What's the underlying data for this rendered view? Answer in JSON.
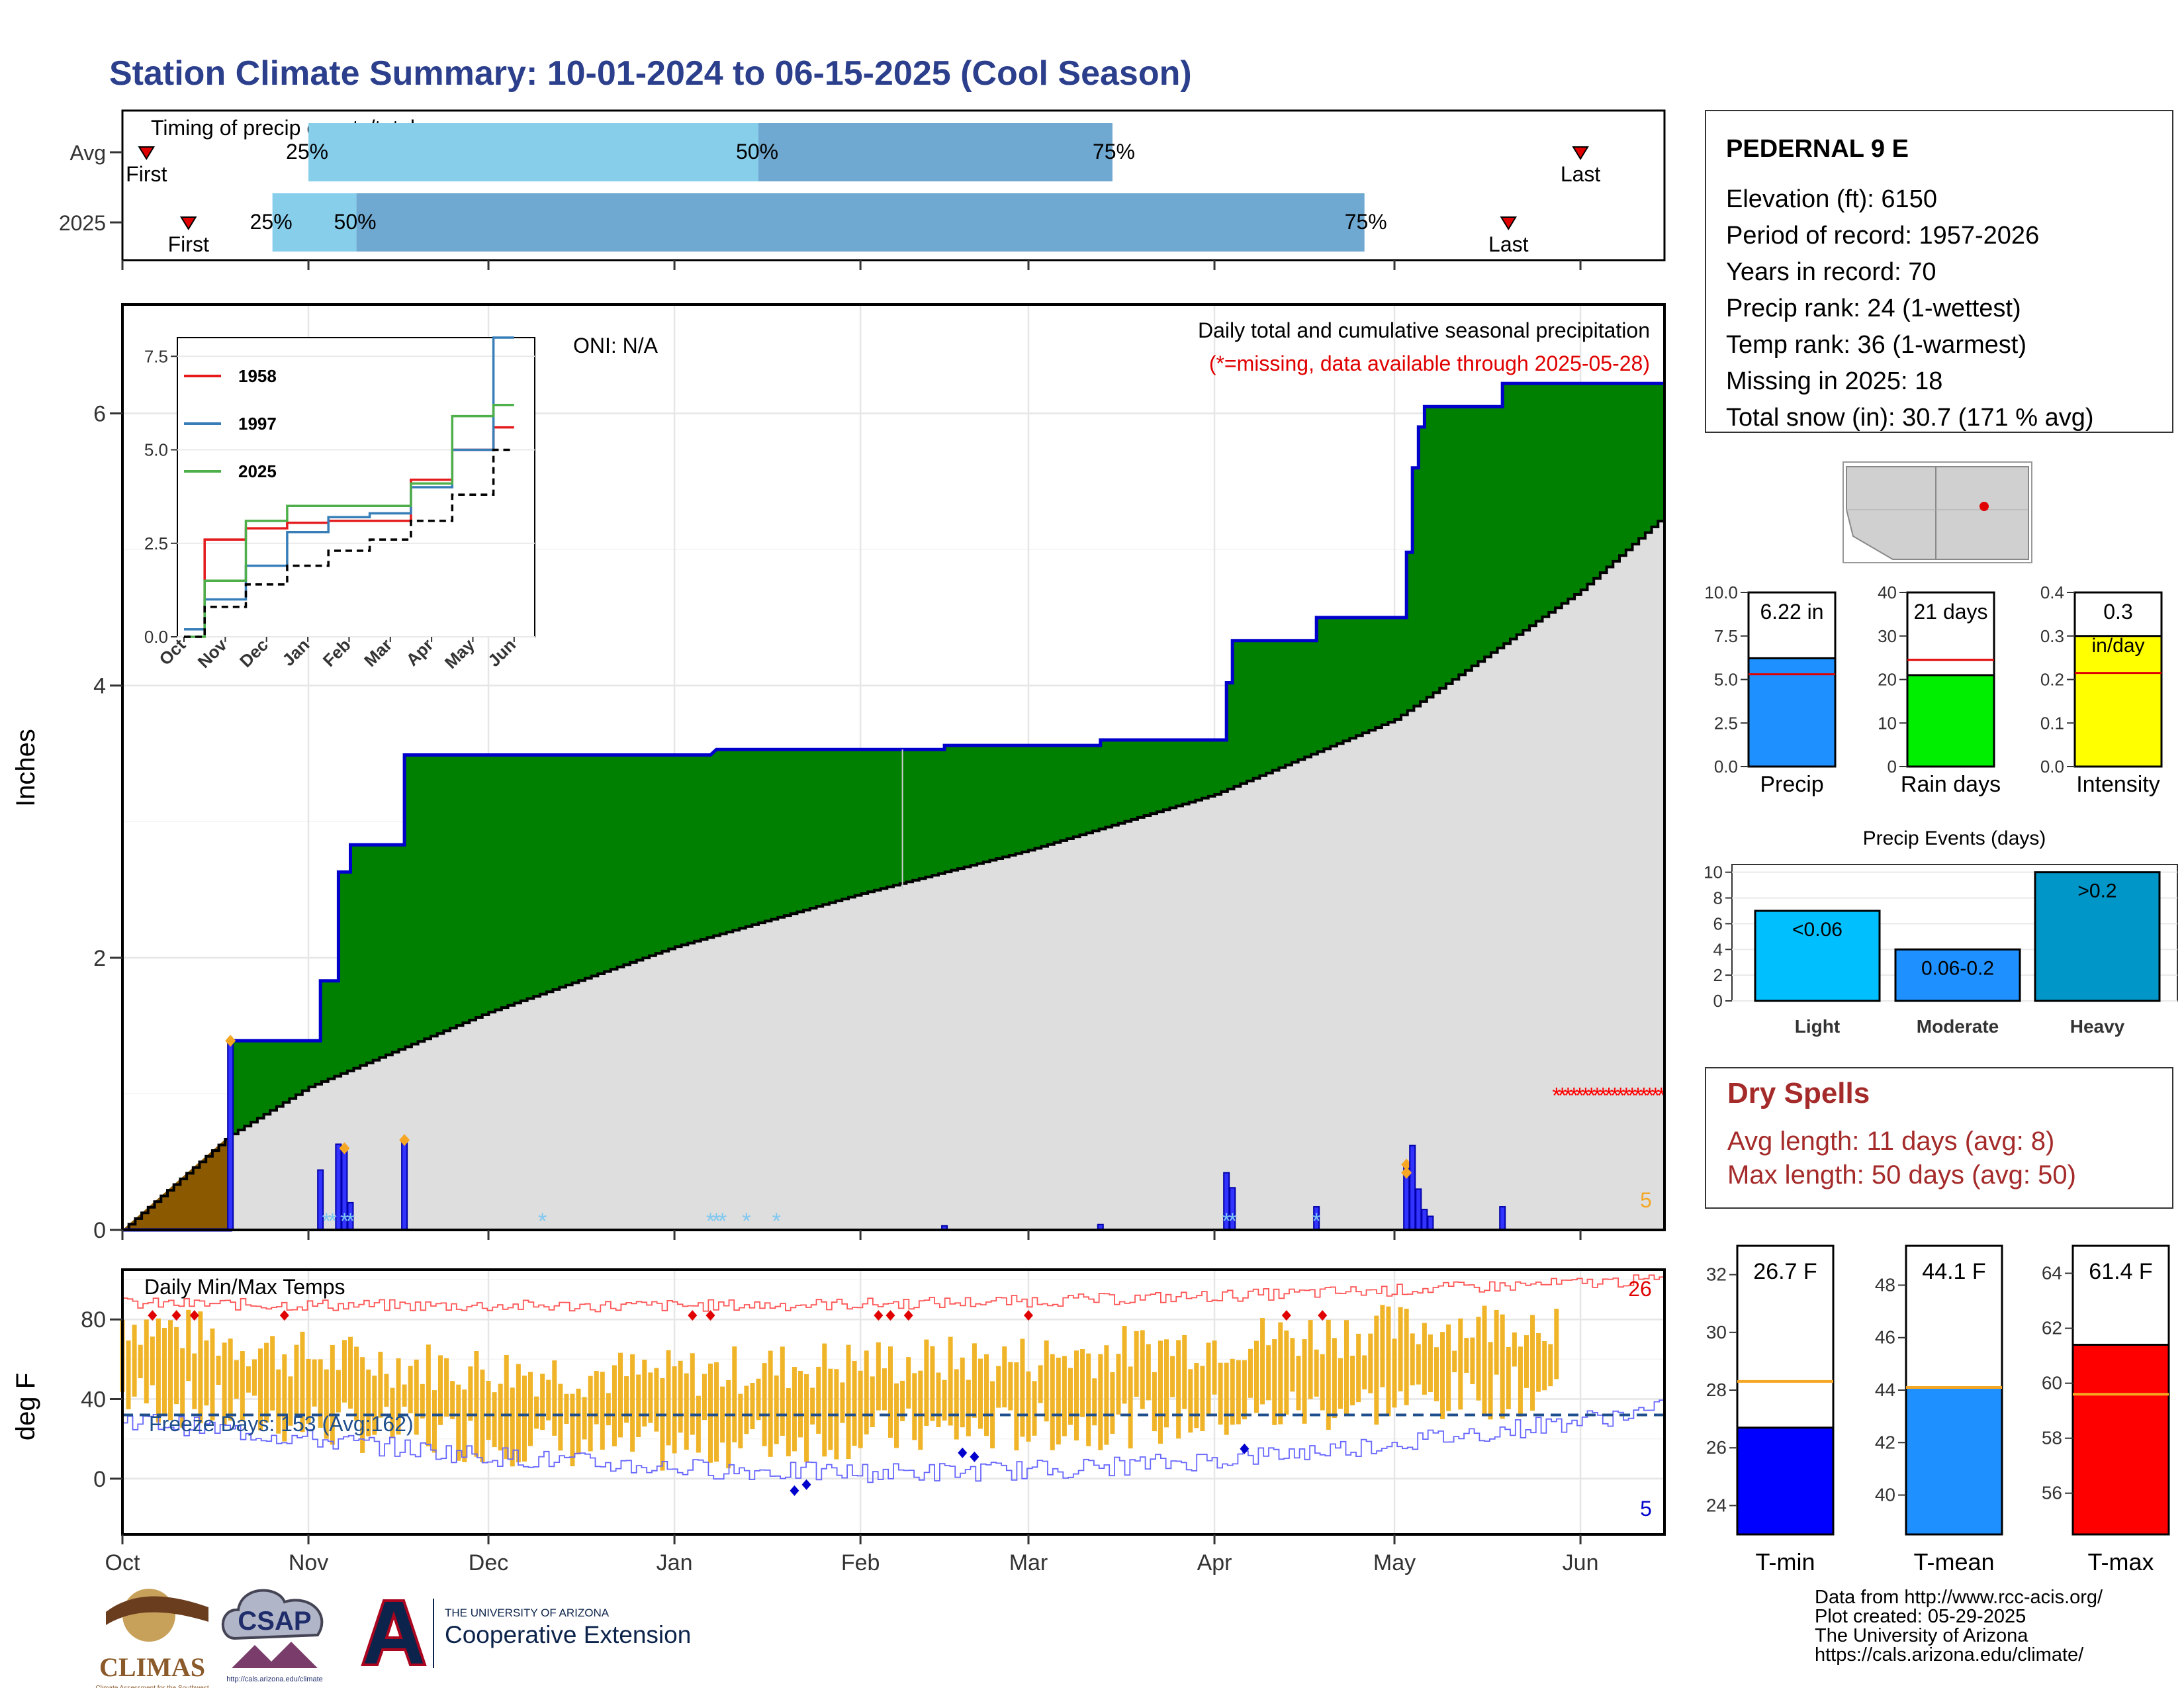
{
  "title": "Station Climate Summary: 10-01-2024 to 06-15-2025 (Cool Season)",
  "colors": {
    "title": "#2b3f8c",
    "precip_fill": "#008000",
    "season_line": "#0000cc",
    "climo_fill": "#dedede",
    "brown": "#8b5a00",
    "q_light": "#87ceeb",
    "q_dark": "#6fa8d0",
    "temp_bar": "#f0b429",
    "tmax_line": "#ff5555",
    "tmin_line": "#6666ff",
    "freeze": "#1f4e8c",
    "missing": "#ff0000",
    "dry": "#a52a2a"
  },
  "timing": {
    "label": "Timing of precip events/totals",
    "rows": [
      {
        "name": "Avg",
        "first_label": "First",
        "last_label": "Last",
        "first": "2024-10-05",
        "last": "2025-06-01",
        "q25": "2024-11-01",
        "q50": "2025-01-15",
        "q75": "2025-03-15",
        "q25_label": "25%",
        "q50_label": "50%",
        "q75_label": "75%"
      },
      {
        "name": "2025",
        "first_label": "First",
        "last_label": "Last",
        "first": "2024-10-12",
        "last": "2025-05-20",
        "q25": "2024-10-26",
        "q50": "2024-11-09",
        "q75": "2025-04-26",
        "q25_label": "25%",
        "q50_label": "50%",
        "q75_label": "75%"
      }
    ]
  },
  "precip_panel": {
    "ylabel": "Inches",
    "yticks": [
      "0",
      "2",
      "4",
      "6"
    ],
    "subtitle": "Daily total and cumulative seasonal precipitation",
    "missing_note": "(*=missing, data available through 2025-05-28)",
    "oni": "ONI: N/A",
    "count_label": "5"
  },
  "inset": {
    "yticks": [
      "0.0",
      "2.5",
      "5.0",
      "7.5"
    ],
    "xticks": [
      "Oct",
      "Nov",
      "Dec",
      "Jan",
      "Feb",
      "Mar",
      "Apr",
      "May",
      "Jun"
    ],
    "legend": [
      "1958",
      "1997",
      "2025"
    ]
  },
  "temp_panel": {
    "ylabel": "deg F",
    "label": "Daily Min/Max Temps",
    "yticks": [
      "0",
      "40",
      "80"
    ],
    "freeze_label": "Freeze Days: 153 (Avg:162)",
    "hot_count": "26",
    "cold_count": "5"
  },
  "x_months": [
    "Oct",
    "Nov",
    "Dec",
    "Jan",
    "Feb",
    "Mar",
    "Apr",
    "May",
    "Jun"
  ],
  "station": {
    "name": "PEDERNAL 9 E",
    "lines": [
      "Elevation (ft): 6150",
      "Period of record: 1957-2026",
      "Years in record: 70",
      "Precip rank: 24 (1-wettest)",
      "Temp rank: 36 (1-warmest)",
      "Missing in 2025: 18",
      "Total snow (in): 30.7 (171 % avg)"
    ]
  },
  "summary_bars": [
    {
      "label": "Precip",
      "value_label": "6.22 in",
      "yticks": [
        "0.0",
        "2.5",
        "5.0",
        "7.5",
        "10.0"
      ]
    },
    {
      "label": "Rain days",
      "value_label": "21 days",
      "yticks": [
        "0",
        "10",
        "20",
        "30",
        "40"
      ]
    },
    {
      "label": "Intensity",
      "value_label": "0.3",
      "value_label2": "in/day",
      "yticks": [
        "0.0",
        "0.1",
        "0.2",
        "0.3",
        "0.4"
      ]
    }
  ],
  "events": {
    "title": "Precip Events (days)",
    "yticks": [
      "0",
      "2",
      "4",
      "6",
      "8",
      "10"
    ],
    "bars": [
      {
        "name": "Light",
        "label": "<0.06"
      },
      {
        "name": "Moderate",
        "label": "0.06-0.2"
      },
      {
        "name": "Heavy",
        "label": ">0.2"
      }
    ]
  },
  "dry_spells": {
    "title": "Dry Spells",
    "avg": "Avg length: 11 days (avg: 8)",
    "max": "Max length: 50 days (avg: 50)"
  },
  "temp_bars": [
    {
      "label": "T-min",
      "value_label": "26.7 F",
      "yticks": [
        "24",
        "26",
        "28",
        "30",
        "32"
      ]
    },
    {
      "label": "T-mean",
      "value_label": "44.1 F",
      "yticks": [
        "40",
        "42",
        "44",
        "46",
        "48"
      ]
    },
    {
      "label": "T-max",
      "value_label": "61.4 F",
      "yticks": [
        "56",
        "58",
        "60",
        "62",
        "64"
      ]
    }
  ],
  "footer": [
    "Data from http://www.rcc-acis.org/",
    "Plot created: 05-29-2025",
    "The University of Arizona",
    "https://cals.arizona.edu/climate/"
  ],
  "logos": {
    "climas": "CLIMAS",
    "climas_sub": "Climate Assessment for the Southwest",
    "csap": "CSAP",
    "csap_url": "http://cals.arizona.edu/climate",
    "ua_small": "THE UNIVERSITY OF ARIZONA",
    "ua_big": "Cooperative Extension"
  },
  "chart_data": [
    {
      "type": "area",
      "name": "cumulative seasonal precipitation",
      "x_unit": "date",
      "ylim": [
        0,
        6.8
      ],
      "season_cumulative": {
        "x": [
          "2024-10-01",
          "2024-10-19",
          "2024-10-19",
          "2024-11-03",
          "2024-11-03",
          "2024-11-06",
          "2024-11-06",
          "2024-11-08",
          "2024-11-08",
          "2024-11-17",
          "2024-11-17",
          "2025-01-07",
          "2025-01-08",
          "2025-02-15",
          "2025-02-15",
          "2025-03-13",
          "2025-03-13",
          "2025-04-03",
          "2025-04-03",
          "2025-04-04",
          "2025-04-04",
          "2025-04-18",
          "2025-04-18",
          "2025-05-03",
          "2025-05-03",
          "2025-05-04",
          "2025-05-04",
          "2025-05-05",
          "2025-05-05",
          "2025-05-06",
          "2025-05-06",
          "2025-05-19",
          "2025-05-19",
          "2025-06-15"
        ],
        "y": [
          0.0,
          0.0,
          1.39,
          1.39,
          1.83,
          1.83,
          2.63,
          2.63,
          2.83,
          2.83,
          3.49,
          3.49,
          3.53,
          3.53,
          3.56,
          3.56,
          3.6,
          3.6,
          4.02,
          4.02,
          4.33,
          4.33,
          4.5,
          4.5,
          4.98,
          4.98,
          5.6,
          5.6,
          5.9,
          5.9,
          6.05,
          6.05,
          6.22,
          6.22
        ]
      },
      "average_cumulative": {
        "x": [
          "2024-10-01",
          "2024-10-19",
          "2024-11-01",
          "2024-12-01",
          "2025-01-01",
          "2025-02-01",
          "2025-03-01",
          "2025-04-01",
          "2025-05-01",
          "2025-06-01",
          "2025-06-15"
        ],
        "y": [
          0.0,
          0.7,
          1.05,
          1.6,
          2.08,
          2.47,
          2.79,
          3.2,
          3.75,
          4.7,
          5.25
        ]
      },
      "daily_bars": {
        "x": [
          "2024-10-19",
          "2024-11-03",
          "2024-11-06",
          "2024-11-07",
          "2024-11-08",
          "2024-11-17",
          "2025-02-15",
          "2025-03-13",
          "2025-04-03",
          "2025-04-04",
          "2025-04-18",
          "2025-05-03",
          "2025-05-04",
          "2025-05-05",
          "2025-05-06",
          "2025-05-07",
          "2025-05-19"
        ],
        "y": [
          1.39,
          0.44,
          0.63,
          0.6,
          0.2,
          0.66,
          0.03,
          0.04,
          0.42,
          0.31,
          0.17,
          0.48,
          0.62,
          0.3,
          0.15,
          0.1,
          0.17
        ]
      },
      "snow_days": [
        "2024-11-04",
        "2024-11-05",
        "2024-11-07",
        "2024-11-08",
        "2024-12-10",
        "2025-01-07",
        "2025-01-08",
        "2025-01-09",
        "2025-01-13",
        "2025-01-18",
        "2025-04-03",
        "2025-04-04",
        "2025-04-18"
      ],
      "missing_days": {
        "start": "2025-05-28",
        "end": "2025-06-15",
        "y": 1.0
      }
    },
    {
      "type": "line",
      "name": "inset cumulative precipitation",
      "x": [
        "Oct",
        "Nov",
        "Dec",
        "Jan",
        "Feb",
        "Mar",
        "Apr",
        "May",
        "Jun"
      ],
      "ylim": [
        0,
        8
      ],
      "series": [
        {
          "name": "1958",
          "values": [
            0.2,
            2.6,
            2.9,
            3.05,
            3.1,
            3.1,
            4.2,
            5.0,
            5.6
          ]
        },
        {
          "name": "1997",
          "values": [
            0.2,
            1.0,
            1.9,
            2.8,
            3.2,
            3.3,
            4.0,
            5.0,
            8.0
          ]
        },
        {
          "name": "2025",
          "values": [
            0.0,
            1.5,
            3.1,
            3.5,
            3.5,
            3.5,
            4.1,
            5.9,
            6.2
          ]
        },
        {
          "name": "",
          "values": [
            0.0,
            0.8,
            1.4,
            1.9,
            2.3,
            2.6,
            3.1,
            3.8,
            5.0
          ]
        }
      ]
    },
    {
      "type": "bar",
      "name": "daily min/max temperatures",
      "ylim": [
        -25,
        105
      ],
      "tmax_approx_monthly": {
        "categories": [
          "Oct",
          "Nov",
          "Dec",
          "Jan",
          "Feb",
          "Mar",
          "Apr",
          "May",
          "May28"
        ],
        "values": [
          80,
          62,
          55,
          52,
          58,
          60,
          68,
          75,
          80
        ]
      },
      "tmin_approx_monthly": {
        "categories": [
          "Oct",
          "Nov",
          "Dec",
          "Jan",
          "Feb",
          "Mar",
          "Apr",
          "May",
          "May28"
        ],
        "values": [
          42,
          28,
          20,
          15,
          22,
          25,
          30,
          38,
          45
        ]
      },
      "avg_max_line": {
        "x": [
          "2024-10-01",
          "2025-06-15"
        ],
        "y": [
          88,
          100
        ]
      },
      "avg_min_line": {
        "x": [
          "2024-10-01",
          "2025-06-15"
        ],
        "y": [
          30,
          40
        ]
      },
      "freeze_line": 32
    },
    {
      "type": "bar",
      "name": "Precip",
      "value": 6.22,
      "average": 5.3,
      "ylim": [
        0,
        10.0
      ]
    },
    {
      "type": "bar",
      "name": "Rain days",
      "value": 21,
      "average": 24.5,
      "ylim": [
        0,
        40
      ]
    },
    {
      "type": "bar",
      "name": "Intensity",
      "value": 0.3,
      "average": 0.215,
      "ylim": [
        0,
        0.4
      ]
    },
    {
      "type": "bar",
      "name": "Precip Events (days)",
      "categories": [
        "Light",
        "Moderate",
        "Heavy"
      ],
      "values": [
        7,
        4,
        10
      ],
      "ylim": [
        0,
        10
      ]
    },
    {
      "type": "bar",
      "name": "T-min",
      "value": 26.7,
      "average": 28.3,
      "ylim": [
        23,
        33
      ]
    },
    {
      "type": "bar",
      "name": "T-mean",
      "value": 44.1,
      "average": 44.1,
      "ylim": [
        38.5,
        49.5
      ]
    },
    {
      "type": "bar",
      "name": "T-max",
      "value": 61.4,
      "average": 59.6,
      "ylim": [
        54.5,
        65
      ]
    }
  ]
}
